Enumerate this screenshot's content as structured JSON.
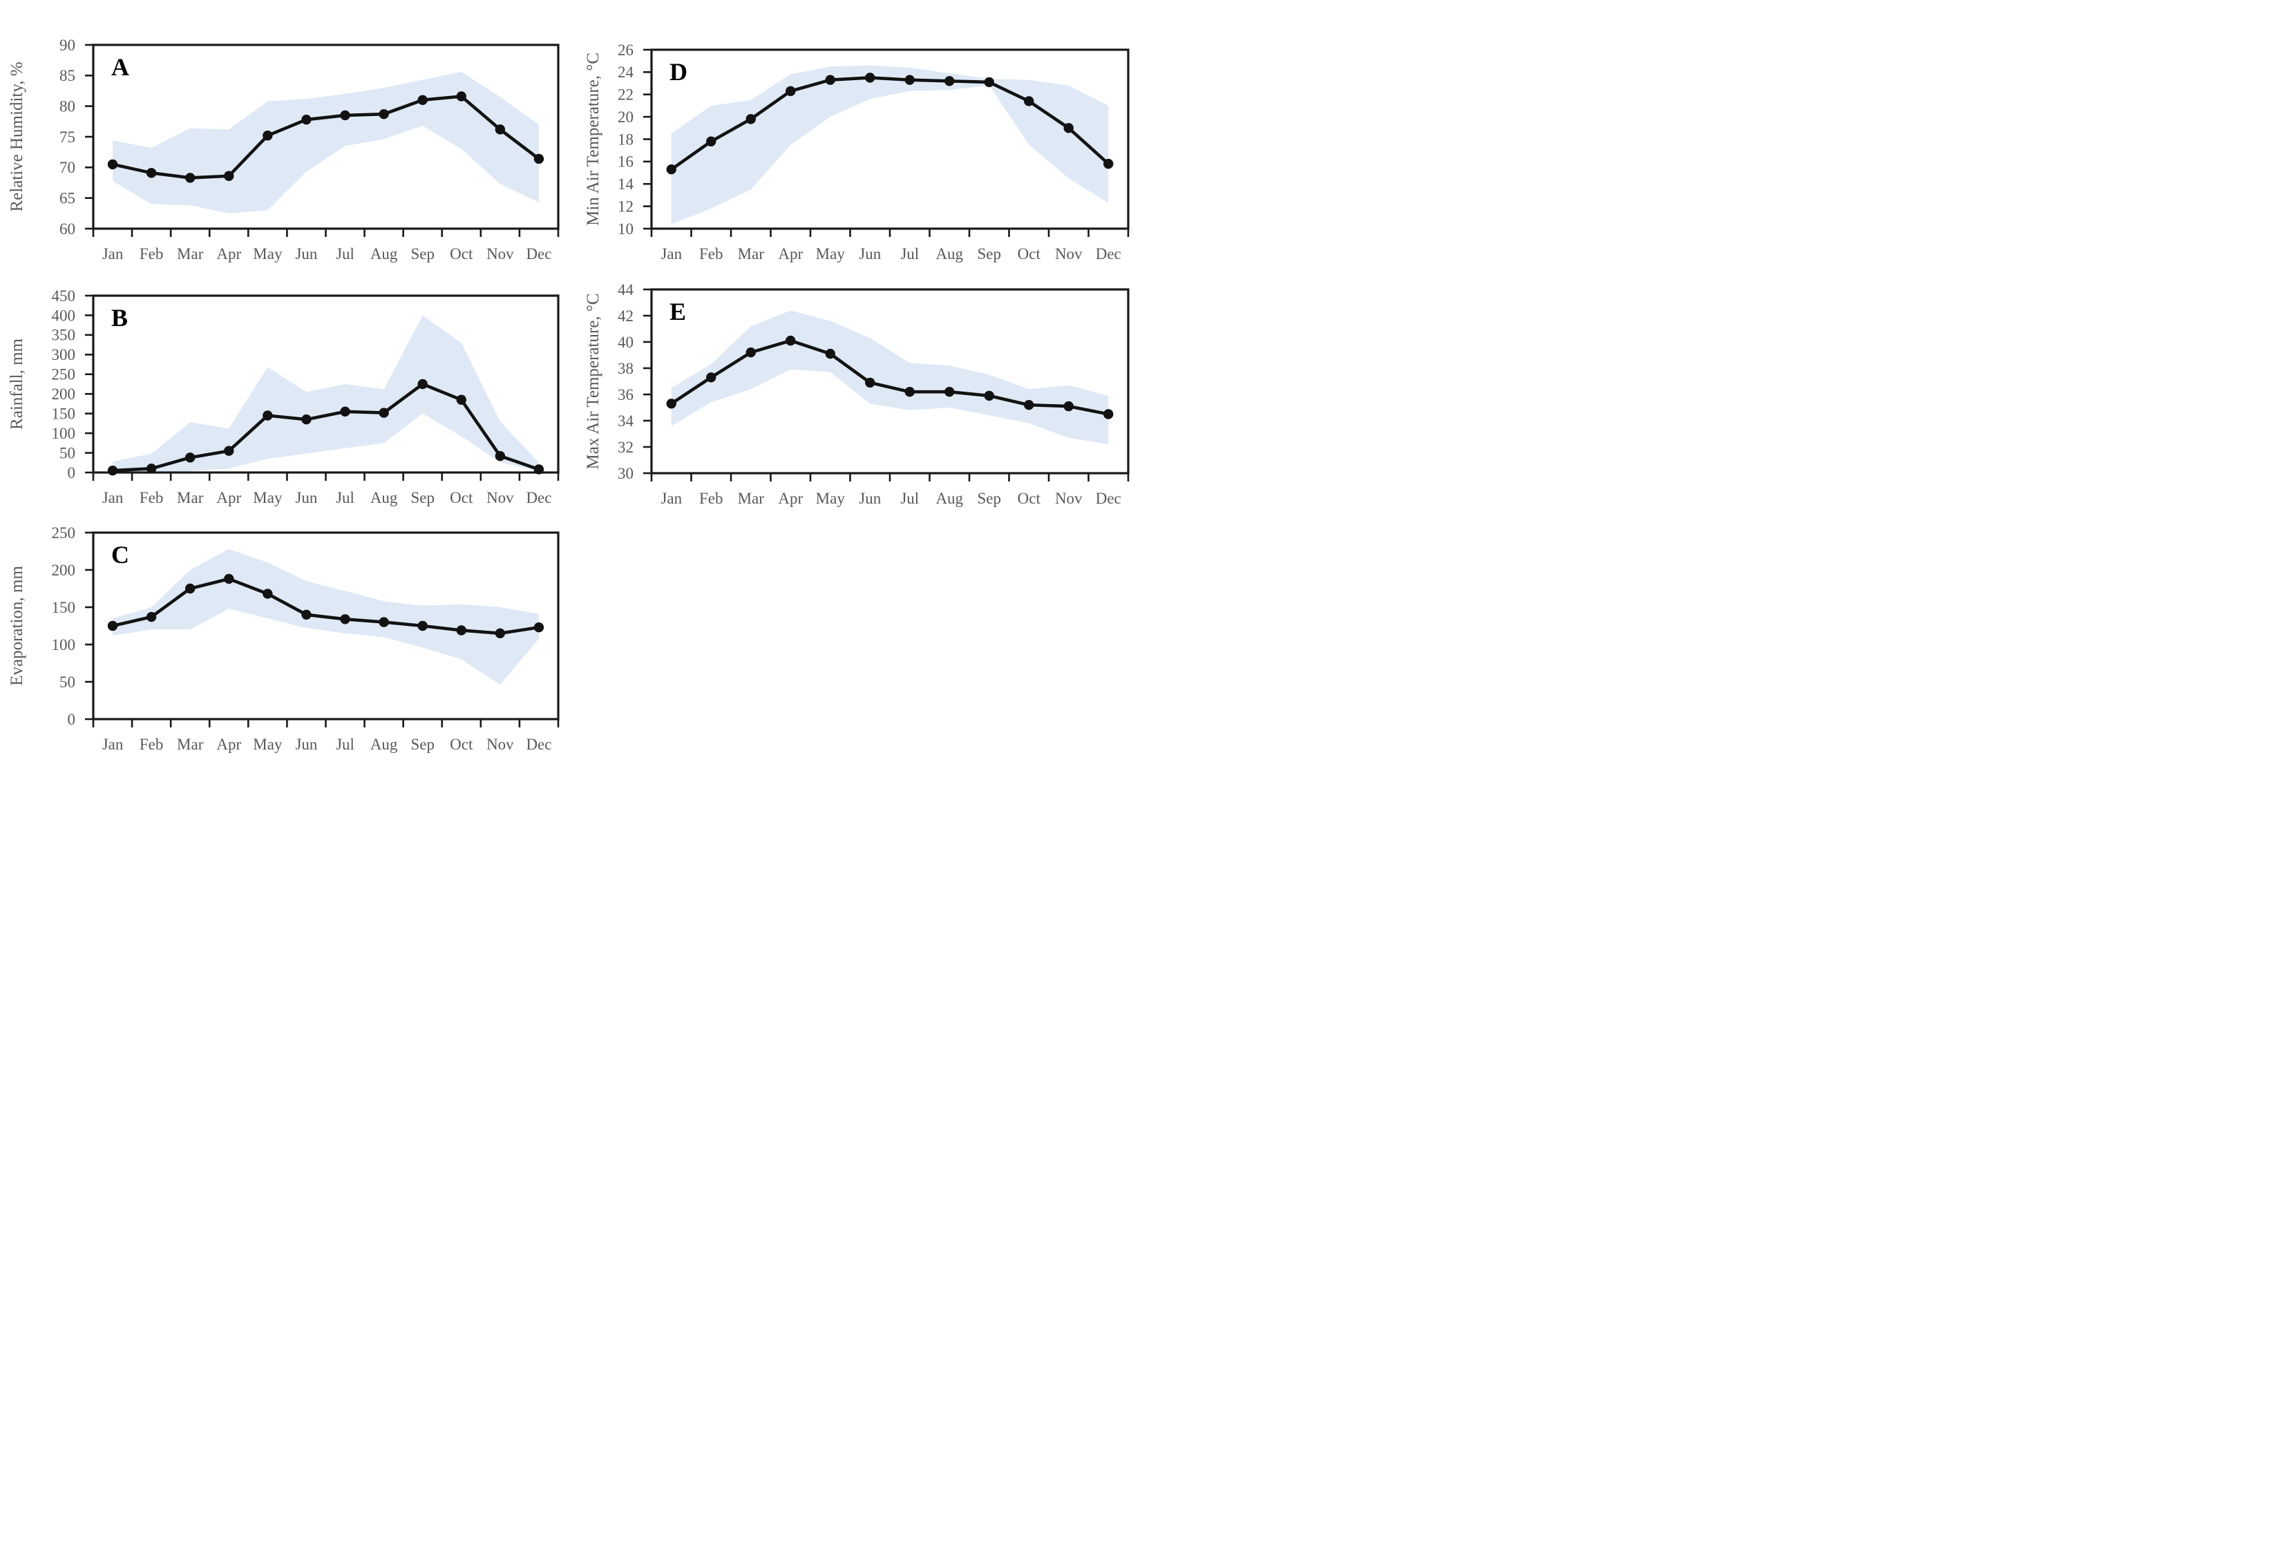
{
  "months": [
    "Jan",
    "Feb",
    "Mar",
    "Apr",
    "May",
    "Jun",
    "Jul",
    "Aug",
    "Sep",
    "Oct",
    "Nov",
    "Dec"
  ],
  "colors": {
    "band": "#dfe9f5",
    "line": "#121212",
    "axis": "#191919",
    "label": "#595959",
    "panel_letter": "#000000",
    "background": "#ffffff"
  },
  "chart_data": [
    {
      "type": "line",
      "panel_label": "A",
      "ylabel": "Relative Humidity, %",
      "ylim": [
        60,
        90
      ],
      "ytick_step": 5,
      "yticks": [
        60,
        65,
        70,
        75,
        80,
        85,
        90
      ],
      "grid": false,
      "legend": "none",
      "series": [
        {
          "name": "mean",
          "values": [
            70.5,
            69.1,
            68.3,
            68.6,
            75.2,
            77.8,
            78.5,
            78.7,
            81.0,
            81.6,
            76.2,
            71.4
          ]
        },
        {
          "name": "range-upper",
          "values": [
            74.4,
            73.2,
            76.4,
            76.2,
            80.8,
            81.2,
            82.0,
            83.0,
            84.3,
            85.6,
            81.5,
            77.0
          ]
        },
        {
          "name": "range-lower",
          "values": [
            67.8,
            64.0,
            63.8,
            62.5,
            63.0,
            69.3,
            73.5,
            74.6,
            76.8,
            73.0,
            67.3,
            64.3
          ]
        }
      ]
    },
    {
      "type": "line",
      "panel_label": "B",
      "ylabel": "Rainfall, mm",
      "ylim": [
        0,
        450
      ],
      "ytick_step": 50,
      "yticks": [
        0,
        50,
        100,
        150,
        200,
        250,
        300,
        350,
        400,
        450
      ],
      "grid": false,
      "legend": "none",
      "series": [
        {
          "name": "mean",
          "values": [
            5,
            10,
            38,
            55,
            145,
            135,
            155,
            152,
            225,
            185,
            42,
            8
          ]
        },
        {
          "name": "range-upper",
          "values": [
            28,
            48,
            128,
            112,
            268,
            205,
            225,
            212,
            400,
            330,
            130,
            25
          ]
        },
        {
          "name": "range-lower",
          "values": [
            0,
            0,
            3,
            10,
            35,
            48,
            62,
            75,
            150,
            92,
            26,
            3
          ]
        }
      ]
    },
    {
      "type": "line",
      "panel_label": "C",
      "ylabel": "Evaporation, mm",
      "ylim": [
        0,
        250
      ],
      "ytick_step": 50,
      "yticks": [
        0,
        50,
        100,
        150,
        200,
        250
      ],
      "grid": false,
      "legend": "none",
      "series": [
        {
          "name": "mean",
          "values": [
            125,
            137,
            175,
            188,
            168,
            140,
            134,
            130,
            125,
            119,
            115,
            123
          ]
        },
        {
          "name": "range-upper",
          "values": [
            135,
            150,
            200,
            228,
            210,
            185,
            172,
            158,
            152,
            154,
            150,
            141
          ]
        },
        {
          "name": "range-lower",
          "values": [
            112,
            120,
            120,
            148,
            135,
            122,
            115,
            110,
            96,
            80,
            46,
            108
          ]
        }
      ]
    },
    {
      "type": "line",
      "panel_label": "D",
      "ylabel": "Min Air Temperature, °C",
      "ylim": [
        10,
        26
      ],
      "ytick_step": 2,
      "yticks": [
        10,
        12,
        14,
        16,
        18,
        20,
        22,
        24,
        26
      ],
      "grid": false,
      "legend": "none",
      "series": [
        {
          "name": "mean",
          "values": [
            15.3,
            17.8,
            19.8,
            22.3,
            23.3,
            23.5,
            23.3,
            23.2,
            23.1,
            21.4,
            19.0,
            15.8
          ]
        },
        {
          "name": "range-upper",
          "values": [
            18.5,
            21.0,
            21.5,
            23.8,
            24.5,
            24.6,
            24.4,
            23.9,
            23.4,
            23.3,
            22.8,
            21.0
          ]
        },
        {
          "name": "range-lower",
          "values": [
            10.4,
            11.8,
            13.5,
            17.5,
            20.0,
            21.6,
            22.3,
            22.4,
            22.8,
            17.5,
            14.5,
            12.3
          ]
        }
      ]
    },
    {
      "type": "line",
      "panel_label": "E",
      "ylabel": "Max Air Temperature, °C",
      "ylim": [
        30,
        44
      ],
      "ytick_step": 2,
      "yticks": [
        30,
        32,
        34,
        36,
        38,
        40,
        42,
        44
      ],
      "grid": false,
      "legend": "none",
      "series": [
        {
          "name": "mean",
          "values": [
            35.3,
            37.3,
            39.2,
            40.1,
            39.1,
            36.9,
            36.2,
            36.2,
            35.9,
            35.2,
            35.1,
            34.5
          ]
        },
        {
          "name": "range-upper",
          "values": [
            36.5,
            38.3,
            41.2,
            42.4,
            41.6,
            40.3,
            38.4,
            38.2,
            37.5,
            36.4,
            36.7,
            35.9
          ]
        },
        {
          "name": "range-lower",
          "values": [
            33.6,
            35.4,
            36.4,
            37.9,
            37.7,
            35.3,
            34.8,
            35.0,
            34.4,
            33.8,
            32.7,
            32.2
          ]
        }
      ]
    }
  ]
}
